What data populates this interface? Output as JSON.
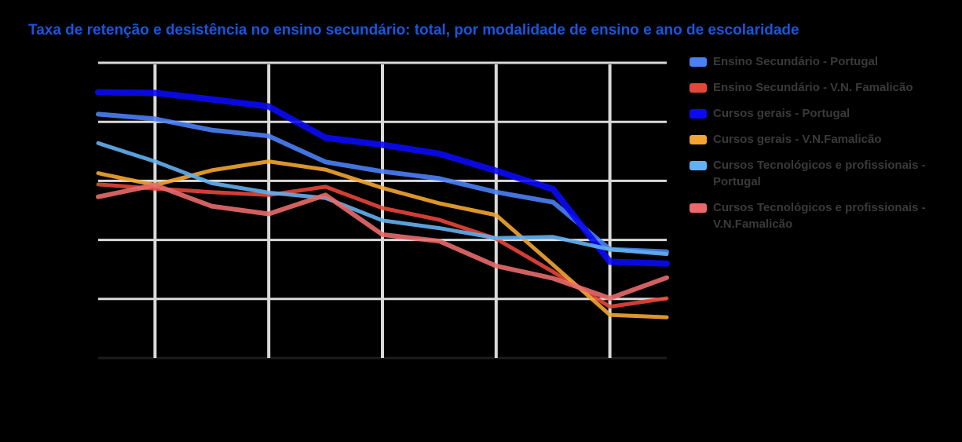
{
  "chart_data": {
    "type": "line",
    "title": "Taxa de retenção e desistência no ensino secundário: total, por modalidade de ensino e ano de escolaridade",
    "xlabel": "",
    "ylabel": "",
    "x": [
      0,
      1,
      2,
      3,
      4,
      5,
      6,
      7,
      8,
      9,
      10
    ],
    "ylim": [
      0,
      5
    ],
    "grid": true,
    "legend_position": "right",
    "series": [
      {
        "name": "Ensino Secundário - Portugal",
        "color": "#4a7ff5",
        "width": 6,
        "values": [
          4.13,
          4.05,
          3.86,
          3.76,
          3.32,
          3.16,
          3.04,
          2.81,
          2.64,
          1.84,
          1.8
        ]
      },
      {
        "name": "Ensino Secundário - V.N. Famalicão",
        "color": "#e8453a",
        "width": 5,
        "values": [
          2.94,
          2.87,
          2.81,
          2.76,
          2.9,
          2.54,
          2.34,
          2.02,
          1.46,
          0.87,
          1.01
        ]
      },
      {
        "name": "Cursos gerais - Portugal",
        "color": "#0a0af5",
        "width": 8,
        "values": [
          4.5,
          4.49,
          4.38,
          4.26,
          3.73,
          3.61,
          3.46,
          3.17,
          2.86,
          1.63,
          1.6
        ]
      },
      {
        "name": "Cursos gerais - V.N.Famalicão",
        "color": "#f2a531",
        "width": 5,
        "values": [
          3.13,
          2.93,
          3.18,
          3.33,
          3.19,
          2.88,
          2.62,
          2.42,
          1.58,
          0.73,
          0.69
        ]
      },
      {
        "name": "Cursos Tecnológicos e profissionais - Portugal",
        "color": "#63b0f0",
        "width": 5,
        "values": [
          3.64,
          3.33,
          2.96,
          2.8,
          2.71,
          2.33,
          2.2,
          2.03,
          2.05,
          1.84,
          1.76
        ]
      },
      {
        "name": "Cursos Tecnológicos e profissionais - V.N.Famalicão",
        "color": "#e86a6a",
        "width": 6,
        "values": [
          2.73,
          2.93,
          2.57,
          2.44,
          2.76,
          2.09,
          1.98,
          1.56,
          1.35,
          1.01,
          1.36
        ]
      }
    ]
  }
}
